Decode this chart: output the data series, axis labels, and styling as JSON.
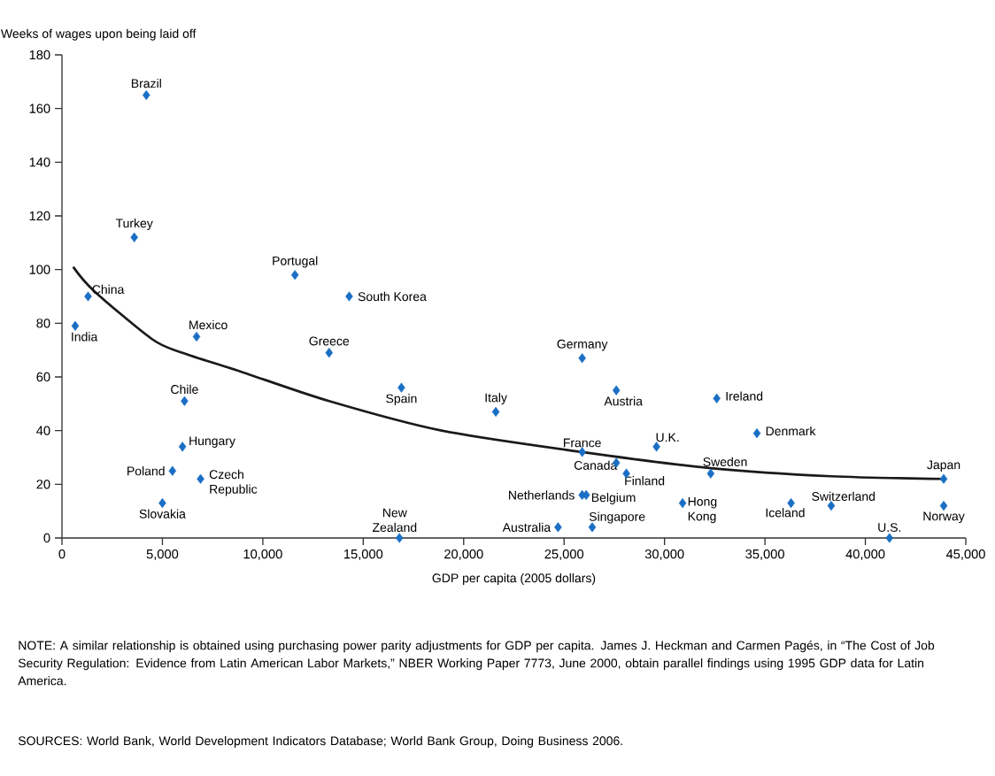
{
  "chart_data": {
    "type": "scatter",
    "ylabel": "Weeks of wages upon being laid off",
    "xlabel": "GDP per capita (2005 dollars)",
    "xlim": [
      0,
      45000
    ],
    "ylim": [
      0,
      180
    ],
    "xticks": [
      0,
      {
        "value": 5000,
        "label": "5,000"
      },
      {
        "value": 10000,
        "label": "10,000"
      },
      {
        "value": 15000,
        "label": "15,000"
      },
      {
        "value": 20000,
        "label": "20,000"
      },
      {
        "value": 25000,
        "label": "25,000"
      },
      {
        "value": 30000,
        "label": "30,000"
      },
      {
        "value": 35000,
        "label": "35,000"
      },
      {
        "value": 40000,
        "label": "40,000"
      },
      {
        "value": 45000,
        "label": "45,000"
      }
    ],
    "yticks": [
      0,
      20,
      40,
      60,
      80,
      100,
      120,
      140,
      160,
      180
    ],
    "marker": "diamond",
    "series": [
      {
        "color": "#1a6fc4",
        "x": [
          4200,
          3600,
          1300,
          660,
          6700,
          11600,
          14300,
          13300,
          6100,
          16900,
          21600,
          25900,
          27600,
          32600,
          34600,
          29600,
          25900,
          27600,
          28100,
          32300,
          43900,
          25900,
          26100,
          26400,
          24700,
          30900,
          36300,
          38300,
          43900,
          41200,
          6000,
          5500,
          6900,
          5000,
          16800
        ],
        "values": [
          165,
          112,
          90,
          79,
          75,
          98,
          90,
          69,
          51,
          56,
          47,
          67,
          55,
          52,
          39,
          34,
          32,
          28,
          24,
          24,
          22,
          16,
          16,
          4,
          4,
          13,
          13,
          12,
          12,
          0,
          34,
          25,
          22,
          13,
          0
        ]
      },
      {
        "type": "line",
        "color": "#1a1a1a",
        "marker": "none",
        "x": [
          560,
          1600,
          4500,
          6000,
          8900,
          13300,
          18900,
          25900,
          32300,
          38300,
          43900
        ],
        "values": [
          101,
          92,
          74,
          69,
          62,
          51,
          40,
          32,
          26,
          23,
          22
        ]
      }
    ],
    "annotations": [
      {
        "text": "Brazil",
        "x": 4200,
        "y": 165
      },
      {
        "text": "Turkey",
        "x": 3600,
        "y": 112
      },
      {
        "text": "China",
        "x": 1300,
        "y": 90
      },
      {
        "text": "India",
        "x": 660,
        "y": 79
      },
      {
        "text": "Mexico",
        "x": 6700,
        "y": 75
      },
      {
        "text": "Portugal",
        "x": 11600,
        "y": 98
      },
      {
        "text": "South Korea",
        "x": 14300,
        "y": 90
      },
      {
        "text": "Greece",
        "x": 13300,
        "y": 69
      },
      {
        "text": "Chile",
        "x": 6100,
        "y": 51
      },
      {
        "text": "Spain",
        "x": 16900,
        "y": 56
      },
      {
        "text": "Italy",
        "x": 21600,
        "y": 47
      },
      {
        "text": "Germany",
        "x": 25900,
        "y": 67
      },
      {
        "text": "Austria",
        "x": 27600,
        "y": 55
      },
      {
        "text": "Ireland",
        "x": 32600,
        "y": 52
      },
      {
        "text": "Denmark",
        "x": 34600,
        "y": 39
      },
      {
        "text": "U.K.",
        "x": 29600,
        "y": 34
      },
      {
        "text": "France",
        "x": 25900,
        "y": 32
      },
      {
        "text": "Canada",
        "x": 27600,
        "y": 28
      },
      {
        "text": "Finland",
        "x": 28100,
        "y": 24
      },
      {
        "text": "Sweden",
        "x": 32300,
        "y": 24
      },
      {
        "text": "Japan",
        "x": 43900,
        "y": 22
      },
      {
        "text": "Netherlands",
        "x": 25900,
        "y": 16
      },
      {
        "text": "Belgium",
        "x": 26100,
        "y": 16
      },
      {
        "text": "Singapore",
        "x": 26400,
        "y": 4
      },
      {
        "text": "Australia",
        "x": 24700,
        "y": 4
      },
      {
        "text": "Hong Kong",
        "x": 30900,
        "y": 13
      },
      {
        "text": "Iceland",
        "x": 36300,
        "y": 13
      },
      {
        "text": "Switzerland",
        "x": 38300,
        "y": 12
      },
      {
        "text": "Norway",
        "x": 43900,
        "y": 12
      },
      {
        "text": "U.S.",
        "x": 41200,
        "y": 0
      },
      {
        "text": "Hungary",
        "x": 6000,
        "y": 34
      },
      {
        "text": "Poland",
        "x": 5500,
        "y": 25
      },
      {
        "text": "Czech Republic",
        "x": 6900,
        "y": 22
      },
      {
        "text": "Slovakia",
        "x": 5000,
        "y": 13
      },
      {
        "text": "New Zealand",
        "x": 16800,
        "y": 0
      },
      "NOTE: A similar relationship is obtained using purchasing power parity adjustments for GDP per capita. James J. Heckman and Carmen Pagés, in “The Cost of Job Security Regulation: Evidence from Latin American Labor Markets,” NBER Working Paper 7773, June 2000, obtain parallel findings using 1995 GDP data for Latin America.",
      "SOURCES: World Bank, World Development Indicators Database; World Bank Group, Doing Business 2006."
    ]
  }
}
